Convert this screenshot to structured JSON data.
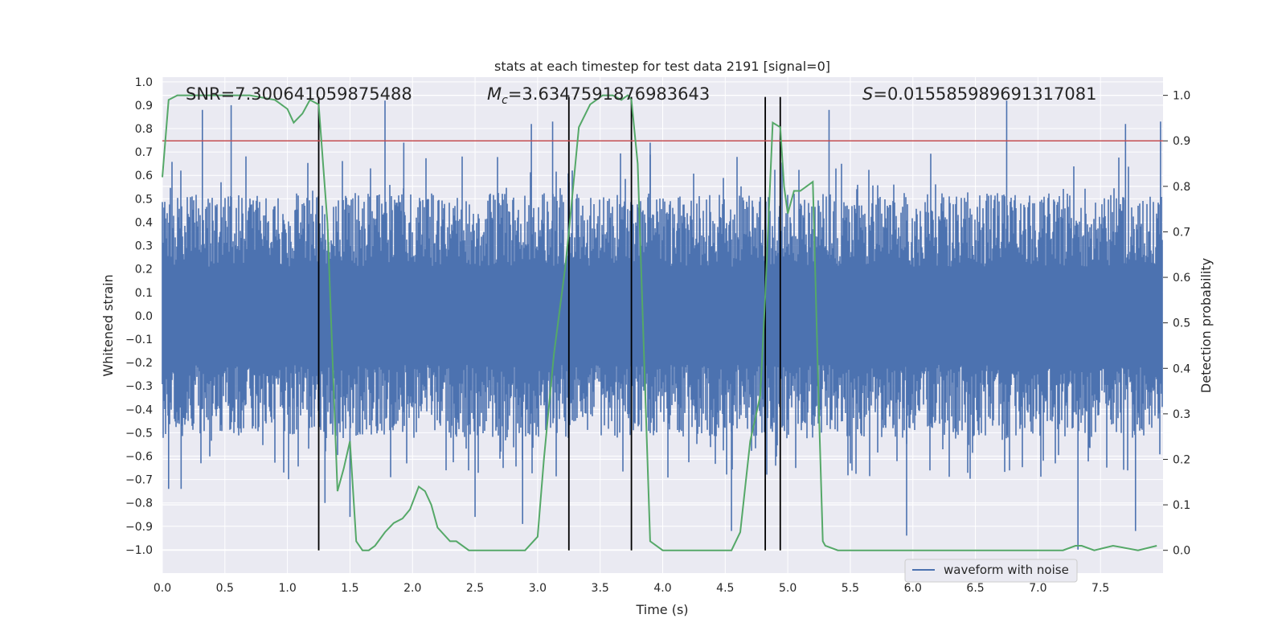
{
  "chart_data": {
    "type": "line",
    "title": "stats at each timestep for test data 2191 [signal=0]",
    "xlabel": "Time (s)",
    "ylabel": "Whitened strain",
    "y2label": "Detection probability",
    "xlim": [
      0,
      8
    ],
    "ylim": [
      -1.1,
      1.02
    ],
    "y2lim": [
      -0.05,
      1.04
    ],
    "xticks": [
      "0.0",
      "0.5",
      "1.0",
      "1.5",
      "2.0",
      "2.5",
      "3.0",
      "3.5",
      "4.0",
      "4.5",
      "5.0",
      "5.5",
      "6.0",
      "6.5",
      "7.0",
      "7.5"
    ],
    "yticks": [
      "1.0",
      "0.9",
      "0.8",
      "0.7",
      "0.6",
      "0.5",
      "0.4",
      "0.3",
      "0.2",
      "0.1",
      "0.0",
      "-0.1",
      "-0.2",
      "-0.3",
      "-0.4",
      "-0.5",
      "-0.6",
      "-0.7",
      "-0.8",
      "-0.9",
      "-1.0"
    ],
    "y2ticks": [
      "1.0",
      "0.9",
      "0.8",
      "0.7",
      "0.6",
      "0.5",
      "0.4",
      "0.3",
      "0.2",
      "0.1",
      "0.0"
    ],
    "annotations": {
      "snr": "SNR=7.300641059875488",
      "mc_symbol": "M",
      "mc_sub": "c",
      "mc_value": "=3.6347591876983643",
      "s_symbol": "S",
      "s_value": "=0.015585989691317081"
    },
    "threshold": 0.9,
    "vlines": [
      1.25,
      3.25,
      3.75,
      4.82,
      4.94
    ],
    "series": [
      {
        "name": "waveform with noise",
        "color": "#4c72b0",
        "envelope_amplitude": 0.35,
        "spike_peaks": [
          {
            "t": 0.32,
            "v": 0.88
          },
          {
            "t": 0.55,
            "v": 0.9
          },
          {
            "t": 1.78,
            "v": 0.92
          },
          {
            "t": 1.93,
            "v": 0.74
          },
          {
            "t": 2.95,
            "v": 0.82
          },
          {
            "t": 3.12,
            "v": 0.83
          },
          {
            "t": 3.25,
            "v": 0.74
          },
          {
            "t": 3.9,
            "v": 0.74
          },
          {
            "t": 5.33,
            "v": 0.88
          },
          {
            "t": 6.75,
            "v": 0.92
          },
          {
            "t": 7.7,
            "v": 0.82
          },
          {
            "t": 7.98,
            "v": 0.83
          },
          {
            "t": 0.05,
            "v": -0.74
          },
          {
            "t": 0.15,
            "v": -0.74
          },
          {
            "t": 1.3,
            "v": -0.8
          },
          {
            "t": 1.5,
            "v": -0.86
          },
          {
            "t": 2.5,
            "v": -0.86
          },
          {
            "t": 2.88,
            "v": -0.89
          },
          {
            "t": 4.55,
            "v": -0.92
          },
          {
            "t": 5.95,
            "v": -0.94
          },
          {
            "t": 7.32,
            "v": -1.0
          },
          {
            "t": 7.78,
            "v": -0.92
          }
        ]
      },
      {
        "name": "detection probability",
        "color": "#55a868",
        "axis": "right",
        "x": [
          0.0,
          0.05,
          0.12,
          0.2,
          0.3,
          0.5,
          0.7,
          0.9,
          1.0,
          1.05,
          1.12,
          1.18,
          1.25,
          1.32,
          1.4,
          1.45,
          1.5,
          1.55,
          1.6,
          1.65,
          1.7,
          1.78,
          1.85,
          1.92,
          1.98,
          2.05,
          2.1,
          2.15,
          2.2,
          2.3,
          2.35,
          2.45,
          2.6,
          2.8,
          2.9,
          3.0,
          3.05,
          3.13,
          3.22,
          3.25,
          3.33,
          3.42,
          3.52,
          3.6,
          3.67,
          3.72,
          3.75,
          3.8,
          3.9,
          4.0,
          4.2,
          4.4,
          4.5,
          4.55,
          4.62,
          4.7,
          4.78,
          4.82,
          4.88,
          4.94,
          4.97,
          5.0,
          5.05,
          5.1,
          5.2,
          5.25,
          5.28,
          5.3,
          5.4,
          5.6,
          5.8,
          6.0,
          6.2,
          6.5,
          6.8,
          7.0,
          7.2,
          7.3,
          7.35,
          7.45,
          7.6,
          7.8,
          7.95
        ],
        "values": [
          0.82,
          0.99,
          1.0,
          1.0,
          1.0,
          1.0,
          1.0,
          0.99,
          0.97,
          0.94,
          0.96,
          0.99,
          0.98,
          0.72,
          0.13,
          0.18,
          0.24,
          0.02,
          0.0,
          0.0,
          0.01,
          0.04,
          0.06,
          0.07,
          0.09,
          0.14,
          0.13,
          0.1,
          0.05,
          0.02,
          0.02,
          0.0,
          0.0,
          0.0,
          0.0,
          0.03,
          0.2,
          0.43,
          0.62,
          0.7,
          0.93,
          0.98,
          1.0,
          1.0,
          0.99,
          1.0,
          0.99,
          0.85,
          0.02,
          0.0,
          0.0,
          0.0,
          0.0,
          0.0,
          0.04,
          0.24,
          0.34,
          0.56,
          0.94,
          0.93,
          0.8,
          0.74,
          0.79,
          0.79,
          0.81,
          0.3,
          0.02,
          0.01,
          0.0,
          0.0,
          0.0,
          0.0,
          0.0,
          0.0,
          0.0,
          0.0,
          0.0,
          0.01,
          0.01,
          0.0,
          0.01,
          0.0,
          0.01
        ]
      }
    ],
    "legend": {
      "label": "waveform with noise",
      "placement": "lower-right"
    }
  }
}
